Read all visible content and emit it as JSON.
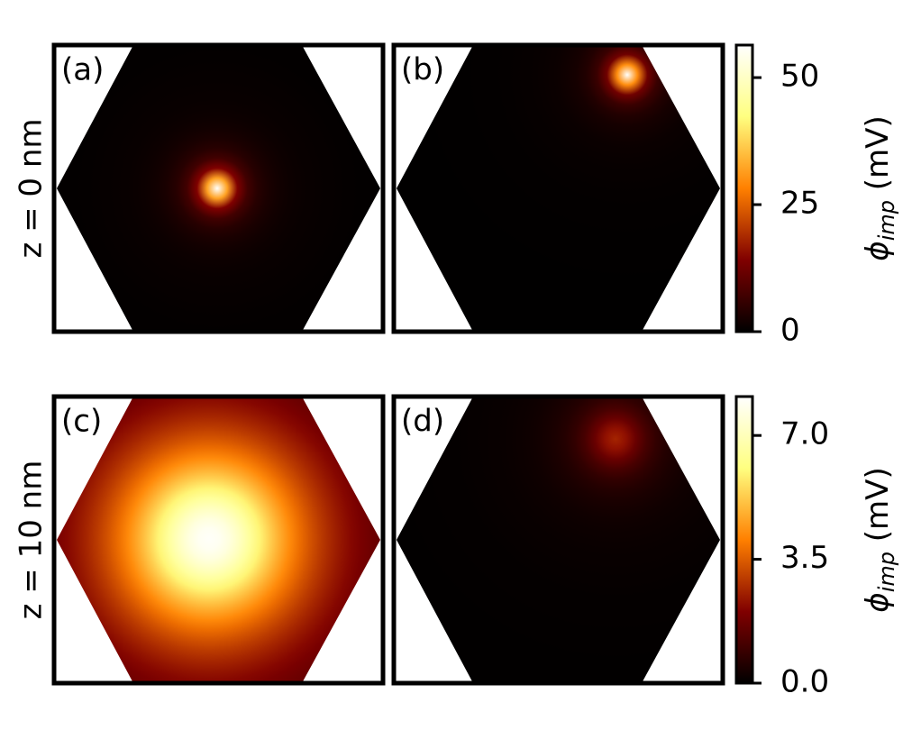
{
  "chart_data": [
    {
      "type": "heatmap",
      "row_label": "z = 0 nm",
      "panels": [
        {
          "label": "(a)",
          "peak": 56
        },
        {
          "label": "(b)",
          "peak": 56
        }
      ],
      "colorbar": {
        "label": {
          "symbol": "ϕ",
          "subscript": "imp",
          "unit": "(mV)"
        },
        "ylim": [
          0,
          56.4
        ],
        "yticks": [
          0,
          25,
          50
        ]
      }
    },
    {
      "type": "heatmap",
      "row_label": "z = 10 nm",
      "panels": [
        {
          "label": "(c)",
          "peak": 8
        },
        {
          "label": "(d)",
          "peak": 2.6
        }
      ],
      "colorbar": {
        "label": {
          "symbol": "ϕ",
          "subscript": "imp",
          "unit": "(mV)"
        },
        "ylim": [
          0,
          8.1
        ],
        "yticks": [
          {
            "value": 0,
            "label": "0.0"
          },
          {
            "value": 3.5,
            "label": "3.5"
          },
          {
            "value": 7,
            "label": "7.0"
          }
        ]
      }
    }
  ]
}
